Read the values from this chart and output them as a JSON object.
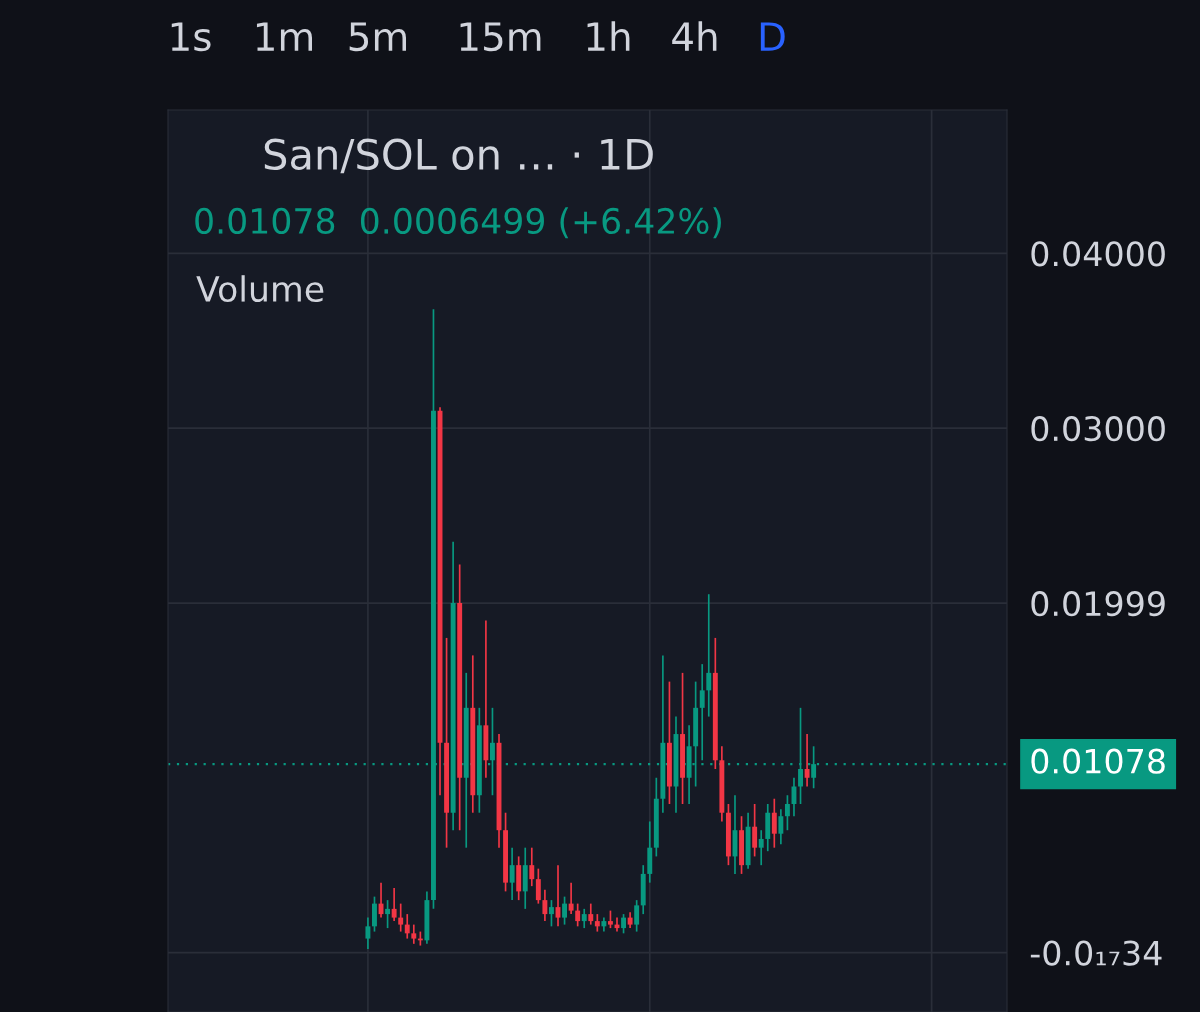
{
  "chart_data": {
    "type": "candlestick",
    "title": "San/SOL on … · 1D",
    "annotations": [
      "1s",
      "1m",
      "5m",
      "15m",
      "1h",
      "4h",
      "D",
      "0.01078  0.0006499 (+6.42%)",
      "Volume"
    ],
    "categories": [
      null,
      null,
      null,
      null,
      null,
      null,
      null,
      null,
      null,
      null,
      null,
      null,
      null,
      null,
      null,
      null,
      null,
      null,
      null,
      null,
      null,
      null,
      null,
      null,
      null,
      null,
      null,
      null,
      null,
      null,
      null,
      null,
      null,
      null,
      null,
      null,
      null,
      null,
      null,
      null,
      null,
      null,
      null,
      null,
      null,
      null,
      null,
      null,
      null,
      null,
      null,
      null,
      null,
      null,
      null,
      null,
      null,
      null,
      null,
      null,
      null,
      null,
      null,
      null,
      null,
      null,
      null,
      null,
      null,
      null,
      null,
      null,
      null,
      null,
      null,
      null,
      null,
      null,
      null,
      null,
      null,
      null,
      null,
      null,
      null,
      null,
      null,
      null,
      null,
      null,
      null,
      null,
      null,
      null,
      null,
      null,
      null,
      null,
      null,
      null,
      null,
      null,
      null,
      null,
      null,
      null,
      null,
      null,
      null,
      null,
      null,
      null,
      null,
      null,
      null,
      null,
      null,
      null,
      null,
      null,
      null,
      null,
      null,
      null,
      null,
      null,
      null,
      null
    ],
    "ohlc": [
      null,
      null,
      null,
      null,
      null,
      null,
      null,
      null,
      null,
      null,
      null,
      null,
      null,
      null,
      null,
      null,
      null,
      null,
      null,
      null,
      null,
      null,
      null,
      null,
      null,
      null,
      null,
      null,
      null,
      null,
      [
        0.0008,
        0.002,
        0.0002,
        0.0015
      ],
      [
        0.0015,
        0.0032,
        0.0012,
        0.0028
      ],
      [
        0.0028,
        0.004,
        0.002,
        0.0022
      ],
      [
        0.0022,
        0.003,
        0.0014,
        0.0025
      ],
      [
        0.0025,
        0.0037,
        0.0018,
        0.002
      ],
      [
        0.002,
        0.0028,
        0.0012,
        0.0016
      ],
      [
        0.0016,
        0.0022,
        0.0008,
        0.0011
      ],
      [
        0.0011,
        0.0016,
        0.0005,
        0.0008
      ],
      [
        0.0008,
        0.0012,
        0.0004,
        0.0007
      ],
      [
        0.0007,
        0.0035,
        0.0005,
        0.003
      ],
      [
        0.003,
        0.0368,
        0.0025,
        0.031
      ],
      [
        0.031,
        0.0312,
        0.009,
        0.012
      ],
      [
        0.012,
        0.018,
        0.006,
        0.008
      ],
      [
        0.008,
        0.0235,
        0.007,
        0.02
      ],
      [
        0.02,
        0.0222,
        0.007,
        0.01
      ],
      [
        0.01,
        0.016,
        0.006,
        0.014
      ],
      [
        0.014,
        0.017,
        0.008,
        0.009
      ],
      [
        0.009,
        0.014,
        0.008,
        0.013
      ],
      [
        0.013,
        0.019,
        0.01,
        0.011
      ],
      [
        0.011,
        0.014,
        0.009,
        0.012
      ],
      [
        0.012,
        0.0125,
        0.006,
        0.007
      ],
      [
        0.007,
        0.008,
        0.0035,
        0.004
      ],
      [
        0.004,
        0.006,
        0.003,
        0.005
      ],
      [
        0.005,
        0.0055,
        0.003,
        0.0035
      ],
      [
        0.0035,
        0.006,
        0.0025,
        0.005
      ],
      [
        0.005,
        0.006,
        0.0038,
        0.0042
      ],
      [
        0.0042,
        0.0048,
        0.0028,
        0.003
      ],
      [
        0.003,
        0.0036,
        0.0018,
        0.0022
      ],
      [
        0.0022,
        0.003,
        0.0015,
        0.0026
      ],
      [
        0.0026,
        0.005,
        0.0015,
        0.002
      ],
      [
        0.002,
        0.0032,
        0.0016,
        0.0028
      ],
      [
        0.0028,
        0.004,
        0.0022,
        0.0024
      ],
      [
        0.0024,
        0.0028,
        0.0015,
        0.0018
      ],
      [
        0.0018,
        0.0025,
        0.0014,
        0.0022
      ],
      [
        0.0022,
        0.0028,
        0.0016,
        0.0018
      ],
      [
        0.0018,
        0.0022,
        0.0012,
        0.0015
      ],
      [
        0.0015,
        0.002,
        0.0012,
        0.0018
      ],
      [
        0.0018,
        0.0024,
        0.0014,
        0.0016
      ],
      [
        0.0016,
        0.002,
        0.0012,
        0.0014
      ],
      [
        0.0014,
        0.0022,
        0.0011,
        0.002
      ],
      [
        0.002,
        0.0023,
        0.0014,
        0.0016
      ],
      [
        0.0016,
        0.003,
        0.0012,
        0.0027
      ],
      [
        0.0027,
        0.005,
        0.0022,
        0.0045
      ],
      [
        0.0045,
        0.0075,
        0.004,
        0.006
      ],
      [
        0.006,
        0.01,
        0.0055,
        0.0088
      ],
      [
        0.0088,
        0.017,
        0.008,
        0.012
      ],
      [
        0.012,
        0.0155,
        0.0085,
        0.0095
      ],
      [
        0.0095,
        0.0135,
        0.008,
        0.0125
      ],
      [
        0.0125,
        0.016,
        0.0085,
        0.01
      ],
      [
        0.01,
        0.013,
        0.0085,
        0.0118
      ],
      [
        0.0118,
        0.0155,
        0.0095,
        0.014
      ],
      [
        0.014,
        0.0165,
        0.011,
        0.015
      ],
      [
        0.015,
        0.0205,
        0.0135,
        0.016
      ],
      [
        0.016,
        0.018,
        0.0105,
        0.011
      ],
      [
        0.011,
        0.0118,
        0.0075,
        0.008
      ],
      [
        0.008,
        0.0085,
        0.005,
        0.0055
      ],
      [
        0.0055,
        0.009,
        0.0045,
        0.007
      ],
      [
        0.007,
        0.0078,
        0.0045,
        0.005
      ],
      [
        0.005,
        0.008,
        0.0048,
        0.0072
      ],
      [
        0.0072,
        0.0085,
        0.0055,
        0.006
      ],
      [
        0.006,
        0.007,
        0.005,
        0.0065
      ],
      [
        0.0065,
        0.0085,
        0.0058,
        0.008
      ],
      [
        0.008,
        0.0088,
        0.006,
        0.0068
      ],
      [
        0.0068,
        0.0082,
        0.0062,
        0.0078
      ],
      [
        0.0078,
        0.009,
        0.007,
        0.0085
      ],
      [
        0.0085,
        0.01,
        0.0078,
        0.0095
      ],
      [
        0.0095,
        0.014,
        0.0085,
        0.0105
      ],
      [
        0.0105,
        0.0125,
        0.0095,
        0.01
      ],
      [
        0.01,
        0.0118,
        0.0094,
        0.01078
      ],
      null,
      null,
      null,
      null,
      null,
      null,
      null,
      null,
      null,
      null,
      null,
      null,
      null,
      null,
      null,
      null,
      null,
      null,
      null,
      null,
      null,
      null,
      null,
      null,
      null,
      null,
      null,
      null,
      null
    ],
    "colors": [
      null,
      null,
      null,
      null,
      null,
      null,
      null,
      null,
      null,
      null,
      null,
      null,
      null,
      null,
      null,
      null,
      null,
      null,
      null,
      null,
      null,
      null,
      null,
      null,
      null,
      null,
      null,
      null,
      null,
      null,
      "#089981",
      "#089981",
      "#f23645",
      "#089981",
      "#f23645",
      "#f23645",
      "#f23645",
      "#f23645",
      "#f23645",
      "#089981",
      "#089981",
      "#f23645",
      "#f23645",
      "#089981",
      "#f23645",
      "#089981",
      "#f23645",
      "#089981",
      "#f23645",
      "#089981",
      "#f23645",
      "#f23645",
      "#089981",
      "#f23645",
      "#089981",
      "#f23645",
      "#f23645",
      "#f23645",
      "#089981",
      "#f23645",
      "#089981",
      "#f23645",
      "#f23645",
      "#089981",
      "#f23645",
      "#f23645",
      "#089981",
      "#f23645",
      "#f23645",
      "#089981",
      "#f23645",
      "#089981",
      "#089981",
      "#089981",
      "#089981",
      "#089981",
      "#f23645",
      "#089981",
      "#f23645",
      "#089981",
      "#089981",
      "#089981",
      "#089981",
      "#f23645",
      "#f23645",
      "#f23645",
      "#089981",
      "#f23645",
      "#089981",
      "#f23645",
      "#089981",
      "#089981",
      "#f23645",
      "#089981",
      "#089981",
      "#089981",
      "#089981",
      "#f23645",
      "#089981",
      null,
      null,
      null,
      null,
      null,
      null,
      null,
      null,
      null,
      null,
      null,
      null,
      null,
      null,
      null,
      null,
      null,
      null,
      null,
      null,
      null,
      null,
      null,
      null,
      null,
      null,
      null,
      null,
      null
    ],
    "ylim": [
      -0.0034,
      0.0482
    ],
    "yticks": [
      {
        "value": 0.04,
        "label": "0.04000"
      },
      {
        "value": 0.03,
        "label": "0.03000"
      },
      0.01999,
      {
        "value": 0,
        "label": "-0.0₁₇34"
      }
    ],
    "ref_lines": [
      {
        "axis": "y",
        "value": 0.01078,
        "label": "0.01078",
        "color": "#089981",
        "line_style": "dotted"
      }
    ],
    "grid": true
  }
}
